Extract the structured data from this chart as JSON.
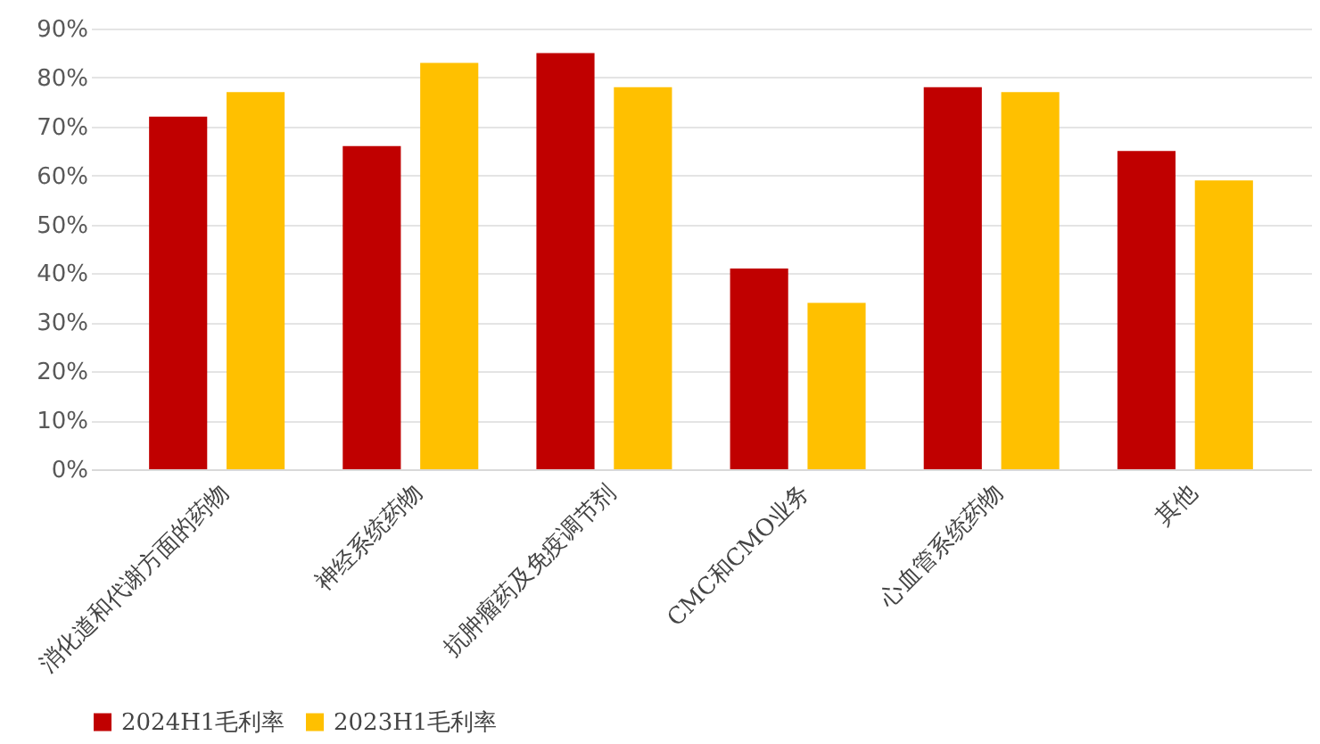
{
  "chart_data": {
    "type": "bar",
    "categories": [
      "消化道和代谢方面的药物",
      "神经系统药物",
      "抗肿瘤药及免疫调节剂",
      "CMC和CMO业务",
      "心血管系统药物",
      "其他"
    ],
    "series": [
      {
        "name": "2024H1毛利率",
        "color": "#c00000",
        "values": [
          72,
          66,
          85,
          41,
          78,
          65
        ]
      },
      {
        "name": "2023H1毛利率",
        "color": "#ffc000",
        "values": [
          77,
          83,
          78,
          34,
          77,
          59
        ]
      }
    ],
    "ylim": [
      0,
      90
    ],
    "yticks": [
      {
        "value": 0,
        "label": "0%"
      },
      {
        "value": 10,
        "label": "10%"
      },
      {
        "value": 20,
        "label": "20%"
      },
      {
        "value": 30,
        "label": "30%"
      },
      {
        "value": 40,
        "label": "40%"
      },
      {
        "value": 50,
        "label": "50%"
      },
      {
        "value": 60,
        "label": "60%"
      },
      {
        "value": 70,
        "label": "70%"
      },
      {
        "value": 80,
        "label": "80%"
      },
      {
        "value": 90,
        "label": "90%"
      }
    ],
    "grid": "y",
    "legend": "bottom"
  }
}
